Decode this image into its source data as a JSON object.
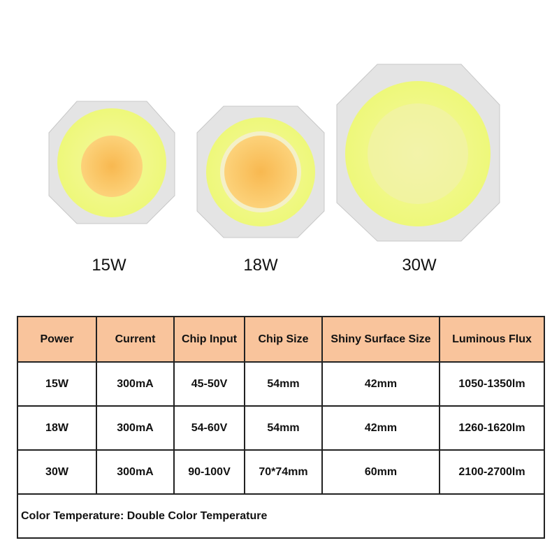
{
  "products": [
    "15W",
    "18W",
    "30W"
  ],
  "table": {
    "header": [
      "Power",
      "Current",
      "Chip Input",
      "Chip Size",
      "Shiny Surface Size",
      "Luminous Flux"
    ],
    "rows": [
      [
        "15W",
        "300mA",
        "45-50V",
        "54mm",
        "42mm",
        "1050-1350lm"
      ],
      [
        "18W",
        "300mA",
        "54-60V",
        "54mm",
        "42mm",
        "1260-1620lm"
      ],
      [
        "30W",
        "300mA",
        "90-100V",
        "70*74mm",
        "60mm",
        "2100-2700lm"
      ]
    ],
    "note": "Color Temperature: Double Color Temperature"
  }
}
